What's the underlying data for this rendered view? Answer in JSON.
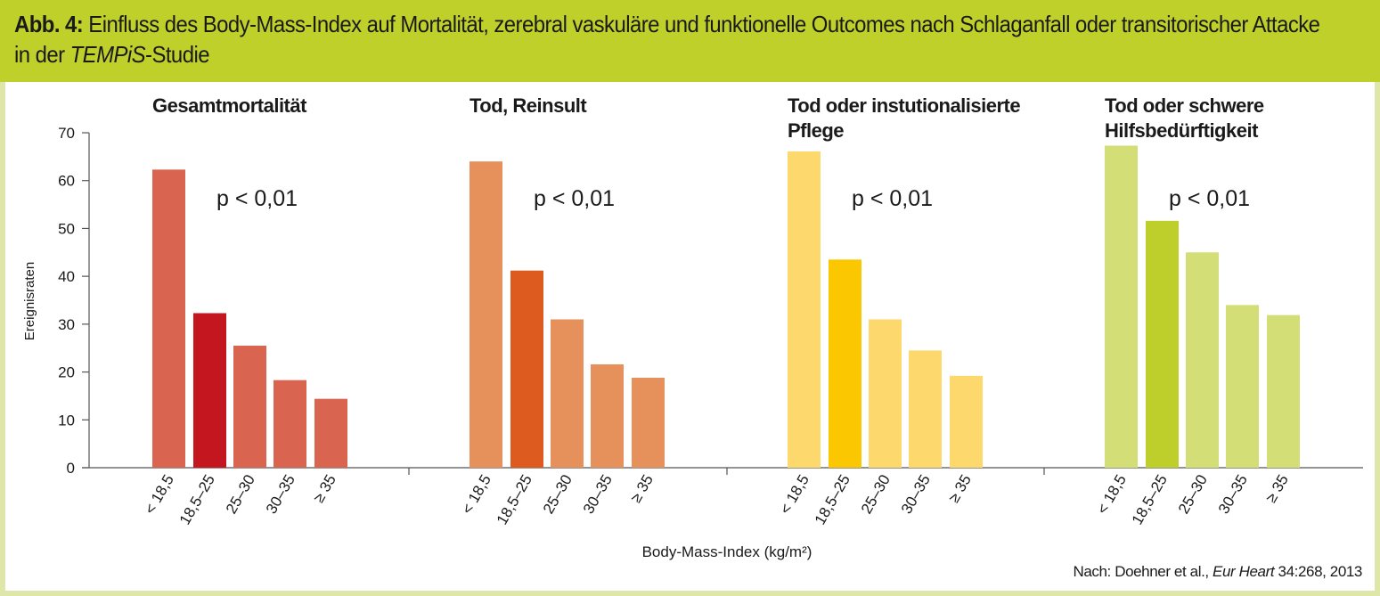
{
  "header": {
    "fig_label": "Abb. 4:",
    "title_main": "Einfluss des Body-Mass-Index auf Mortalität, zerebral vaskuläre und funktionelle Outcomes nach Schlaganfall oder transitorischer Attacke",
    "title_line2_prefix": "in der ",
    "title_study": "TEMPiS",
    "title_line2_suffix": "-Studie"
  },
  "source": {
    "prefix": "Nach: Doehner et al., ",
    "journal": "Eur Heart",
    "suffix": " 34:268, 2013"
  },
  "chart_data": {
    "type": "bar",
    "ylabel": "Ereignisraten",
    "xlabel": "Body-Mass-Index (kg/m²)",
    "ylim": [
      0,
      70
    ],
    "yticks": [
      0,
      10,
      20,
      30,
      40,
      50,
      60,
      70
    ],
    "categories": [
      "< 18,5",
      "18,5–25",
      "25–30",
      "30–35",
      "≥ 35"
    ],
    "annotation": "p < 0,01",
    "panels": [
      {
        "title": [
          "Gesamtmortalität"
        ],
        "values": [
          62.3,
          32.3,
          25.5,
          18.3,
          14.4
        ],
        "color": "#d9644f",
        "highlight_color": "#c3161f",
        "highlight_index": 1
      },
      {
        "title": [
          "Tod, Reinsult"
        ],
        "values": [
          64.0,
          41.2,
          31.0,
          21.6,
          18.8
        ],
        "color": "#e6915c",
        "highlight_color": "#de5b20",
        "highlight_index": 1
      },
      {
        "title": [
          "Tod oder instutionalisierte",
          "Pflege"
        ],
        "values": [
          66.1,
          43.5,
          31.0,
          24.5,
          19.2
        ],
        "color": "#fdd86c",
        "highlight_color": "#fac700",
        "highlight_index": 1
      },
      {
        "title": [
          "Tod oder schwere",
          "Hilfsbedürftigkeit"
        ],
        "values": [
          67.3,
          51.6,
          45.0,
          34.0,
          31.9
        ],
        "color": "#d4de77",
        "highlight_color": "#bece2a",
        "highlight_index": 1
      }
    ]
  }
}
